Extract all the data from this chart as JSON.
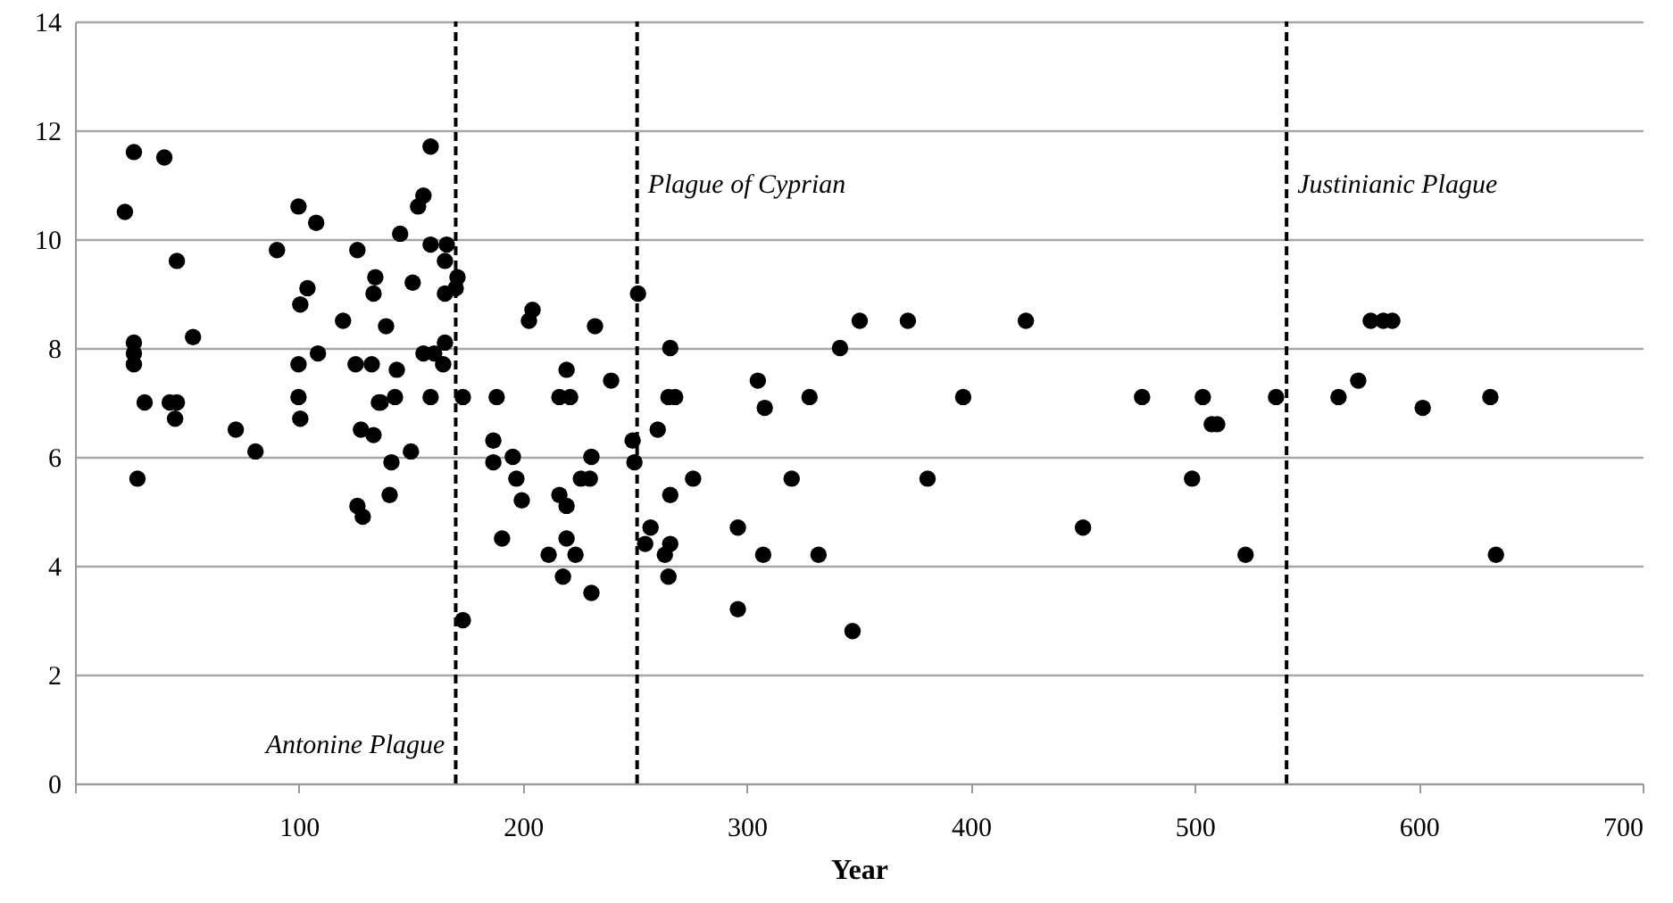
{
  "chart_data": {
    "type": "scatter",
    "xlabel": "Year",
    "x": [
      22.3,
      26.3,
      39.9,
      99.8,
      107.7,
      90.2,
      126.1,
      134.1,
      133.3,
      103.8,
      100.6,
      119.7,
      99.8,
      108.5,
      125.3,
      132.5,
      135.7,
      99.8,
      100.6,
      127.7,
      133.3,
      71.8,
      80.6,
      126.1,
      128.5,
      27.9,
      45.5,
      52.7,
      26.3,
      26.3,
      26.3,
      31.1,
      45.5,
      44.7,
      42.3,
      158.8,
      155.6,
      153.2,
      145.2,
      158.8,
      166,
      165.2,
      150.8,
      170.8,
      170,
      165.2,
      138.9,
      155.6,
      160.4,
      165.2,
      164.4,
      143.7,
      136.5,
      142.9,
      158.8,
      173.2,
      188.3,
      150,
      141.3,
      140.5,
      173.2,
      204.3,
      202.7,
      232.2,
      251.4,
      219.5,
      239.4,
      216.3,
      221.1,
      186.8,
      186.8,
      195.5,
      197.1,
      230.6,
      225.9,
      229.9,
      199.5,
      216.3,
      219.5,
      190.7,
      219.5,
      211.5,
      223.5,
      217.9,
      230.6,
      350.4,
      371.9,
      424.6,
      265.8,
      341.6,
      304.9,
      265,
      268,
      308,
      328,
      396.6,
      249,
      260.2,
      249.8,
      276,
      320,
      380.7,
      265.8,
      257,
      254.6,
      265.8,
      263.4,
      307.3,
      332,
      296,
      265,
      296,
      347.2,
      476.5,
      503.6,
      507.6,
      510,
      536.3,
      498.8,
      450.1,
      522.7,
      564.2,
      573,
      578.6,
      584.2,
      588.2,
      601.8,
      632,
      634.5
    ],
    "values": [
      10.5,
      11.6,
      11.5,
      10.6,
      10.3,
      9.8,
      9.8,
      9.3,
      9.0,
      9.1,
      8.8,
      8.5,
      7.7,
      7.9,
      7.7,
      7.7,
      7.0,
      7.1,
      6.7,
      6.5,
      6.4,
      6.5,
      6.1,
      5.1,
      4.9,
      5.6,
      9.6,
      8.2,
      8.1,
      7.9,
      7.7,
      7.0,
      7.0,
      6.7,
      7.0,
      11.7,
      10.8,
      10.6,
      10.1,
      9.9,
      9.9,
      9.6,
      9.2,
      9.3,
      9.1,
      9.0,
      8.4,
      7.9,
      7.9,
      8.1,
      7.7,
      7.6,
      7.0,
      7.1,
      7.1,
      7.1,
      7.1,
      6.1,
      5.9,
      5.3,
      3.0,
      8.7,
      8.5,
      8.4,
      9.0,
      7.6,
      7.4,
      7.1,
      7.1,
      6.3,
      5.9,
      6.0,
      5.6,
      6.0,
      5.6,
      5.6,
      5.2,
      5.3,
      5.1,
      4.5,
      4.5,
      4.2,
      4.2,
      3.8,
      3.5,
      8.5,
      8.5,
      8.5,
      8.0,
      8.0,
      7.4,
      7.1,
      7.1,
      6.9,
      7.1,
      7.1,
      6.3,
      6.5,
      5.9,
      5.6,
      5.6,
      5.6,
      5.3,
      4.7,
      4.4,
      4.4,
      4.2,
      4.2,
      4.2,
      4.7,
      3.8,
      3.2,
      2.8,
      7.1,
      7.1,
      6.6,
      6.6,
      7.1,
      5.6,
      4.7,
      4.2,
      7.1,
      7.4,
      8.5,
      8.5,
      8.5,
      6.9,
      7.1,
      4.2
    ],
    "color": "#000000",
    "marker": "circle",
    "xlim": [
      0,
      700
    ],
    "xticks": [
      {
        "value": 0,
        "label": null
      },
      100,
      200,
      300,
      400,
      500,
      600,
      700
    ],
    "ylim": [
      0,
      14
    ],
    "yticks": [
      0,
      2,
      4,
      6,
      8,
      10,
      12,
      14
    ],
    "grid": "y",
    "ref_lines": [
      {
        "axis": "x",
        "value": 170,
        "label": "Antonine Plague",
        "line_style": "dashed"
      },
      {
        "axis": "x",
        "value": 251,
        "label": "Plague of Cyprian",
        "line_style": "dashed"
      },
      {
        "axis": "x",
        "value": 541,
        "label": "Justinianic Plague",
        "line_style": "dashed"
      }
    ]
  }
}
